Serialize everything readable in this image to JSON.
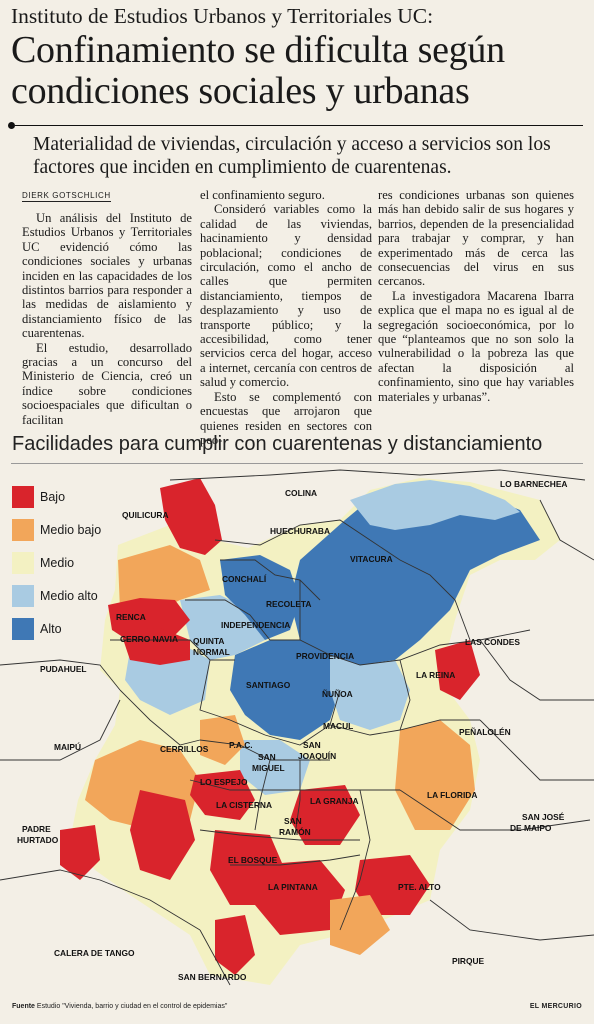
{
  "header": {
    "kicker": "Instituto de Estudios Urbanos y Territoriales UC:",
    "headline": "Confinamiento se dificulta según condiciones sociales y urbanas",
    "deck": "Materialidad de viviendas, circulación y acceso a servicios son los factores que inciden en cumplimiento de cuarentenas."
  },
  "article": {
    "byline": "DIERK GOTSCHLICH",
    "col1": [
      "Un análisis del Instituto de Estudios Urbanos y Territoriales UC evidenció cómo las condiciones sociales y urbanas inciden en las capacidades de los distintos barrios para responder a las medidas de aislamiento y distanciamiento físico de las cuarentenas.",
      "El estudio, desarrollado gracias a un concurso del Ministerio de Ciencia, creó un índice sobre condiciones socioespaciales que dificultan o facilitan"
    ],
    "col2": [
      "el confinamiento seguro.",
      "Consideró variables como la calidad de las viviendas, hacinamiento y densidad poblacional; condiciones de circulación, como el ancho de calles que permiten distanciamiento, tiempos de desplazamiento y uso de transporte público; y la accesibilidad, como tener servicios cerca del hogar, acceso a internet, cercanía con centros de salud y comercio.",
      "Esto se complementó con encuestas que arrojaron que quienes residen en sectores con peo-"
    ],
    "col3": [
      "res condiciones urbanas son quienes más han debido salir de sus hogares y barrios, dependen de la presencialidad para trabajar y comprar, y han experimentado más de cerca las consecuencias del virus en sus cercanos.",
      "La investigadora Macarena Ibarra explica que el mapa no es igual al de segregación socioeconómica, por lo que “planteamos que no son solo la vulnerabilidad o la pobreza las que afectan la disposición al confinamiento, sino que hay variables materiales y urbanas”."
    ]
  },
  "map": {
    "title": "Facilidades para cumplir con cuarentenas y distanciamiento",
    "legend": [
      {
        "label": "Bajo",
        "color": "#d9242c"
      },
      {
        "label": "Medio bajo",
        "color": "#f2a65a"
      },
      {
        "label": "Medio",
        "color": "#f3f1c2"
      },
      {
        "label": "Medio alto",
        "color": "#a9cbe2"
      },
      {
        "label": "Alto",
        "color": "#3f78b5"
      }
    ],
    "communes": {
      "colina": "COLINA",
      "lo_barnechea": "LO BARNECHEA",
      "quilicura": "QUILICURA",
      "huechuraba": "HUECHURABA",
      "vitacura": "VITACURA",
      "conchali": "CONCHALÍ",
      "recoleta": "RECOLETA",
      "renca": "RENCA",
      "independencia": "INDEPENDENCIA",
      "cerro_navia": "CERRO NAVIA",
      "quinta_normal": "QUINTA NORMAL",
      "las_condes": "LAS CONDES",
      "providencia": "PROVIDENCIA",
      "pudahuel": "PUDAHUEL",
      "la_reina": "LA REINA",
      "santiago": "SANTIAGO",
      "nunoa": "ÑUÑOA",
      "macul": "MACUL",
      "penalolen": "PEÑALOLÉN",
      "maipu": "MAIPÚ",
      "cerrillos": "CERRILLOS",
      "pac": "P.A.C.",
      "san_miguel": "SAN MIGUEL",
      "san_joaquin": "SAN JOAQUÍN",
      "lo_espejo": "LO ESPEJO",
      "la_florida": "LA FLORIDA",
      "la_cisterna": "LA CISTERNA",
      "la_granja": "LA GRANJA",
      "san_jose_maipo": "SAN JOSÉ DE MAIPO",
      "san_ramon": "SAN RAMÓN",
      "padre_hurtado": "PADRE HURTADO",
      "el_bosque": "EL BOSQUE",
      "la_pintana": "LA PINTANA",
      "pte_alto": "PTE. ALTO",
      "calera_de_tango": "CALERA DE TANGO",
      "pirque": "PIRQUE",
      "san_bernardo": "SAN BERNARDO"
    }
  },
  "footer": {
    "label": "Fuente",
    "source": "Estudio \"Vivienda, barrio y ciudad en el control de epidemias\"",
    "newspaper": "EL MERCURIO"
  }
}
